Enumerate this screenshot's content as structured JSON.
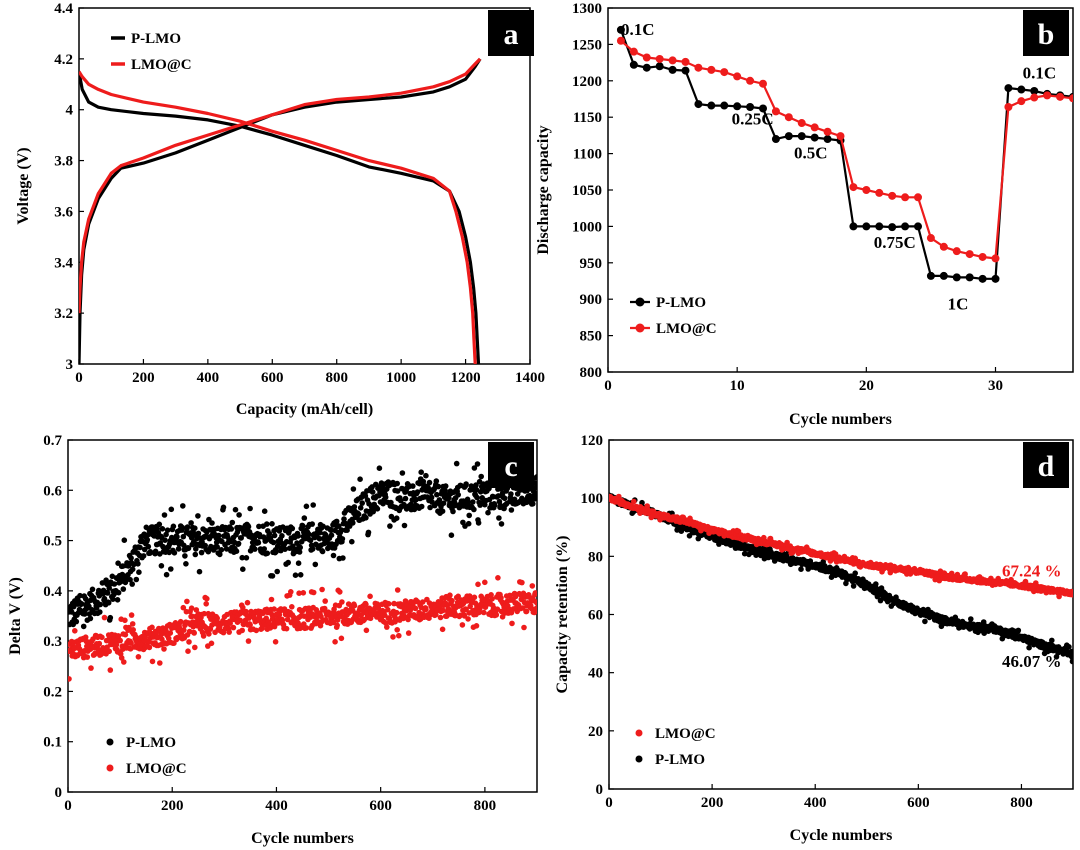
{
  "figure": {
    "colors": {
      "p_lmo": "#000000",
      "lmo_c": "#ee1c1c",
      "badge": "#000000"
    }
  },
  "chart_data": [
    {
      "panel": "a",
      "type": "line",
      "xlabel": "Capacity (mAh/cell)",
      "ylabel": "Voltage (V)",
      "xlim": [
        0,
        1400
      ],
      "ylim": [
        3,
        4.4
      ],
      "xticks": [
        0,
        200,
        400,
        600,
        800,
        1000,
        1200,
        1400
      ],
      "yticks": [
        3,
        3.2,
        3.4,
        3.6,
        3.8,
        4,
        4.2,
        4.4
      ],
      "ytick_labels": [
        "3",
        "3.2",
        "3.4",
        "3.6",
        "3.8",
        "4",
        "4.2",
        "4.4"
      ],
      "legend": {
        "position": "top-left",
        "entries": [
          "P-LMO",
          "LMO@C"
        ]
      },
      "series": [
        {
          "name": "P-LMO",
          "color": "#000000",
          "label": "discharge",
          "x": [
            0,
            10,
            30,
            60,
            100,
            200,
            300,
            400,
            500,
            600,
            700,
            800,
            900,
            1000,
            1100,
            1150,
            1180,
            1200,
            1215,
            1225,
            1232,
            1236,
            1240
          ],
          "y": [
            4.15,
            4.08,
            4.03,
            4.01,
            4.0,
            3.985,
            3.975,
            3.96,
            3.935,
            3.9,
            3.86,
            3.82,
            3.775,
            3.75,
            3.72,
            3.68,
            3.6,
            3.5,
            3.4,
            3.3,
            3.2,
            3.1,
            3.0
          ]
        },
        {
          "name": "P-LMO",
          "color": "#000000",
          "label": "charge",
          "x": [
            0,
            3,
            8,
            15,
            30,
            60,
            100,
            130,
            200,
            300,
            400,
            500,
            600,
            700,
            800,
            900,
            1000,
            1100,
            1150,
            1200,
            1230,
            1245
          ],
          "y": [
            3.0,
            3.2,
            3.35,
            3.45,
            3.55,
            3.65,
            3.73,
            3.77,
            3.79,
            3.83,
            3.88,
            3.93,
            3.98,
            4.01,
            4.03,
            4.04,
            4.05,
            4.07,
            4.09,
            4.12,
            4.17,
            4.2
          ]
        },
        {
          "name": "LMO@C",
          "color": "#ee1c1c",
          "label": "discharge",
          "x": [
            0,
            10,
            30,
            60,
            100,
            200,
            300,
            400,
            500,
            600,
            700,
            800,
            900,
            1000,
            1100,
            1150,
            1170,
            1190,
            1205,
            1215,
            1222,
            1226,
            1230
          ],
          "y": [
            4.15,
            4.13,
            4.1,
            4.08,
            4.06,
            4.03,
            4.01,
            3.985,
            3.955,
            3.915,
            3.88,
            3.84,
            3.8,
            3.77,
            3.73,
            3.68,
            3.6,
            3.5,
            3.4,
            3.3,
            3.2,
            3.1,
            3.0
          ]
        },
        {
          "name": "LMO@C",
          "color": "#ee1c1c",
          "label": "charge",
          "x": [
            0,
            3,
            8,
            15,
            30,
            60,
            100,
            130,
            200,
            300,
            400,
            500,
            600,
            700,
            800,
            900,
            1000,
            1100,
            1150,
            1200,
            1230,
            1245
          ],
          "y": [
            3.2,
            3.3,
            3.4,
            3.48,
            3.57,
            3.67,
            3.75,
            3.78,
            3.81,
            3.86,
            3.9,
            3.94,
            3.98,
            4.02,
            4.04,
            4.05,
            4.065,
            4.09,
            4.11,
            4.14,
            4.18,
            4.2
          ]
        }
      ]
    },
    {
      "panel": "b",
      "type": "line",
      "xlabel": "Cycle numbers",
      "ylabel": "Discharge capacity",
      "xlim": [
        0,
        36
      ],
      "ylim": [
        800,
        1300
      ],
      "xticks": [
        0,
        10,
        20,
        30
      ],
      "yticks": [
        800,
        850,
        900,
        950,
        1000,
        1050,
        1100,
        1150,
        1200,
        1250,
        1300
      ],
      "legend": {
        "position": "bottom-left",
        "entries": [
          "P-LMO",
          "LMO@C"
        ]
      },
      "annotations": [
        {
          "text": "0.1C",
          "x": 2.3,
          "y": 1263
        },
        {
          "text": "0.25C",
          "x": 11.2,
          "y": 1140
        },
        {
          "text": "0.5C",
          "x": 15.7,
          "y": 1093
        },
        {
          "text": "0.75C",
          "x": 22.2,
          "y": 970
        },
        {
          "text": "1C",
          "x": 27.1,
          "y": 886
        },
        {
          "text": "0.1C",
          "x": 33.4,
          "y": 1203
        }
      ],
      "series": [
        {
          "name": "P-LMO",
          "color": "#000000",
          "x": [
            1,
            2,
            3,
            4,
            5,
            6,
            7,
            8,
            9,
            10,
            11,
            12,
            13,
            14,
            15,
            16,
            17,
            18,
            19,
            20,
            21,
            22,
            23,
            24,
            25,
            26,
            27,
            28,
            29,
            30,
            31,
            32,
            33,
            34,
            35,
            36
          ],
          "y": [
            1270,
            1222,
            1218,
            1220,
            1215,
            1214,
            1168,
            1166,
            1166,
            1165,
            1164,
            1162,
            1120,
            1124,
            1124,
            1122,
            1120,
            1118,
            1000,
            1000,
            1000,
            999,
            1000,
            1000,
            932,
            932,
            930,
            930,
            928,
            928,
            1190,
            1188,
            1186,
            1182,
            1180,
            1178
          ]
        },
        {
          "name": "LMO@C",
          "color": "#ee1c1c",
          "x": [
            1,
            2,
            3,
            4,
            5,
            6,
            7,
            8,
            9,
            10,
            11,
            12,
            13,
            14,
            15,
            16,
            17,
            18,
            19,
            20,
            21,
            22,
            23,
            24,
            25,
            26,
            27,
            28,
            29,
            30,
            31,
            32,
            33,
            34,
            35,
            36
          ],
          "y": [
            1255,
            1240,
            1232,
            1230,
            1228,
            1226,
            1218,
            1215,
            1212,
            1206,
            1200,
            1196,
            1158,
            1150,
            1142,
            1136,
            1130,
            1124,
            1054,
            1050,
            1046,
            1042,
            1040,
            1040,
            984,
            972,
            966,
            962,
            958,
            956,
            1164,
            1172,
            1177,
            1180,
            1178,
            1176
          ]
        }
      ]
    },
    {
      "panel": "c",
      "type": "scatter",
      "xlabel": "Cycle numbers",
      "ylabel": "Delta V (V)",
      "xlim": [
        0,
        900
      ],
      "ylim": [
        0,
        0.7
      ],
      "xticks": [
        0,
        200,
        400,
        600,
        800
      ],
      "yticks": [
        0,
        0.1,
        0.2,
        0.3,
        0.4,
        0.5,
        0.6,
        0.7
      ],
      "legend": {
        "position": "bottom-left",
        "entries": [
          "P-LMO",
          "LMO@C"
        ]
      },
      "series": [
        {
          "name": "P-LMO",
          "color": "#000000",
          "x": [
            0,
            40,
            80,
            100,
            120,
            140,
            150,
            160,
            180,
            200,
            240,
            280,
            320,
            360,
            380,
            400,
            440,
            480,
            500,
            520,
            550,
            580,
            600,
            620,
            650,
            680,
            720,
            760,
            800,
            840,
            880,
            900
          ],
          "y": [
            0.35,
            0.37,
            0.4,
            0.42,
            0.45,
            0.49,
            0.5,
            0.5,
            0.5,
            0.505,
            0.5,
            0.5,
            0.5,
            0.51,
            0.5,
            0.5,
            0.5,
            0.51,
            0.5,
            0.52,
            0.55,
            0.58,
            0.59,
            0.595,
            0.58,
            0.59,
            0.58,
            0.585,
            0.59,
            0.59,
            0.6,
            0.6
          ],
          "noise": 0.04,
          "n_points": 900
        },
        {
          "name": "LMO@C",
          "color": "#ee1c1c",
          "x": [
            0,
            10,
            50,
            100,
            150,
            200,
            250,
            300,
            350,
            400,
            450,
            500,
            550,
            600,
            650,
            700,
            750,
            800,
            850,
            900
          ],
          "y": [
            0.275,
            0.285,
            0.29,
            0.3,
            0.305,
            0.315,
            0.335,
            0.335,
            0.34,
            0.345,
            0.345,
            0.35,
            0.355,
            0.355,
            0.36,
            0.365,
            0.37,
            0.37,
            0.375,
            0.375
          ],
          "noise": 0.03,
          "n_points": 900
        }
      ]
    },
    {
      "panel": "d",
      "type": "scatter",
      "xlabel": "Cycle numbers",
      "ylabel": "Capacity retention (%)",
      "xlim": [
        0,
        900
      ],
      "ylim": [
        0,
        120
      ],
      "xticks": [
        0,
        200,
        400,
        600,
        800
      ],
      "yticks": [
        0,
        20,
        40,
        60,
        80,
        100,
        120
      ],
      "legend": {
        "position": "bottom-left",
        "entries": [
          "LMO@C",
          "P-LMO"
        ]
      },
      "annotations": [
        {
          "text": "67.24 %",
          "x": 820,
          "y": 73,
          "color": "#ee1c1c"
        },
        {
          "text": "46.07 %",
          "x": 820,
          "y": 42,
          "color": "#000000"
        }
      ],
      "series": [
        {
          "name": "P-LMO",
          "color": "#000000",
          "x": [
            0,
            50,
            100,
            150,
            200,
            250,
            300,
            350,
            400,
            450,
            500,
            550,
            600,
            650,
            700,
            750,
            800,
            850,
            900
          ],
          "y": [
            100,
            97,
            94,
            90,
            87,
            84,
            81,
            79,
            77,
            74,
            70,
            65,
            61,
            58,
            56,
            55,
            52,
            49,
            46.07
          ],
          "noise": 1.5,
          "n_points": 900
        },
        {
          "name": "LMO@C",
          "color": "#ee1c1c",
          "x": [
            0,
            50,
            100,
            150,
            200,
            250,
            300,
            350,
            400,
            450,
            500,
            550,
            600,
            650,
            700,
            750,
            800,
            850,
            900
          ],
          "y": [
            100,
            97,
            94,
            92,
            89,
            87,
            85,
            83,
            81,
            79,
            77,
            76,
            75,
            73,
            72,
            71,
            70,
            68.5,
            67.24
          ],
          "noise": 1.0,
          "n_points": 900
        }
      ]
    }
  ]
}
